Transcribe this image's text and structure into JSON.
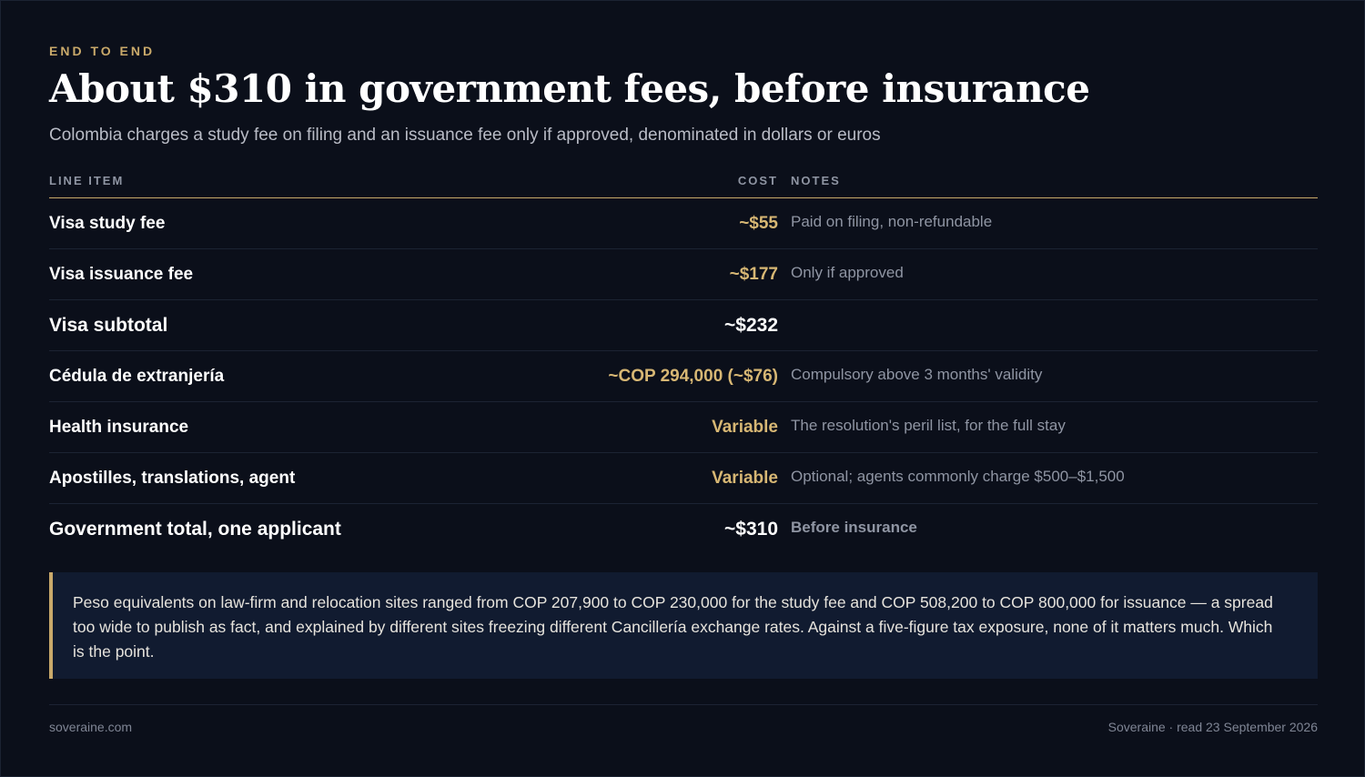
{
  "header": {
    "eyebrow": "END TO END",
    "title": "About $310 in government fees, before insurance",
    "subtitle": "Colombia charges a study fee on filing and an issuance fee only if approved, denominated in dollars or euros"
  },
  "table": {
    "columns": {
      "item": "LINE ITEM",
      "cost": "COST",
      "notes": "NOTES"
    },
    "rows": [
      {
        "item": "Visa study fee",
        "cost": "~$55",
        "notes": "Paid on filing, non-refundable"
      },
      {
        "item": "Visa issuance fee",
        "cost": "~$177",
        "notes": "Only if approved"
      },
      {
        "item": "Visa subtotal",
        "cost": "~$232",
        "notes": ""
      },
      {
        "item": "Cédula de extranjería",
        "cost": "~COP 294,000 (~$76)",
        "notes": "Compulsory above 3 months' validity"
      },
      {
        "item": "Health insurance",
        "cost": "Variable",
        "notes": "The resolution's peril list, for the full stay"
      },
      {
        "item": "Apostilles, translations, agent",
        "cost": "Variable",
        "notes": "Optional; agents commonly charge $500–$1,500"
      },
      {
        "item": "Government total, one applicant",
        "cost": "~$310",
        "notes": "Before insurance"
      }
    ]
  },
  "callout": {
    "text": "Peso equivalents on law-firm and relocation sites ranged from COP 207,900 to COP 230,000 for the study fee and COP 508,200 to COP 800,000 for issuance — a spread too wide to publish as fact, and explained by different sites freezing different Cancillería exchange rates. Against a five-figure tax exposure, none of it matters much. Which is the point."
  },
  "footer": {
    "site": "soveraine.com",
    "credit": "Soveraine · read 23 September 2026"
  },
  "colors": {
    "background": "#0b0f1a",
    "accent": "#c9a96a",
    "callout_bg": "#111b30"
  }
}
